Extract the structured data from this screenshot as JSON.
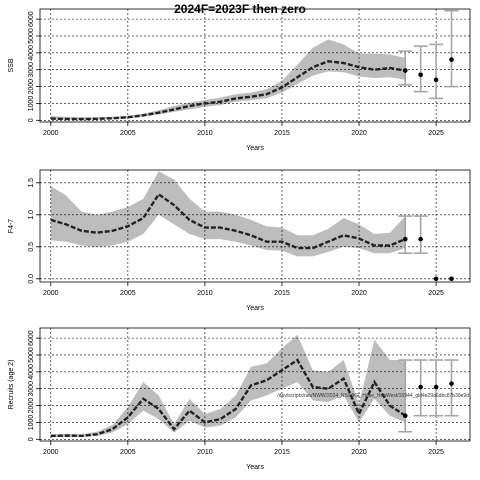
{
  "title": "2024F=2023F then zero",
  "chart_data": [
    {
      "type": "line",
      "xlabel": "Years",
      "ylabel": "SSB",
      "xlim": [
        1999.3,
        2027.2
      ],
      "ylim": [
        -100,
        6600
      ],
      "xticks": [
        2000,
        2005,
        2010,
        2015,
        2020,
        2025
      ],
      "yticks": [
        0,
        1000,
        2000,
        3000,
        4000,
        5000,
        6000
      ],
      "grid": true,
      "band_color": "#bdbdbd",
      "line_color": "#222222",
      "proj_color": "#a6a6a6",
      "series": [
        {
          "x": [
            2000,
            2001,
            2002,
            2003,
            2004,
            2005,
            2006,
            2007,
            2008,
            2009,
            2010,
            2011,
            2012,
            2013,
            2014,
            2015,
            2016,
            2017,
            2018,
            2019,
            2020,
            2021,
            2022,
            2023
          ],
          "values": [
            100,
            80,
            70,
            90,
            120,
            180,
            300,
            450,
            650,
            850,
            1000,
            1100,
            1300,
            1400,
            1550,
            1950,
            2550,
            3150,
            3500,
            3400,
            3150,
            3000,
            3100,
            2950
          ],
          "lower": [
            50,
            40,
            35,
            45,
            70,
            120,
            220,
            350,
            500,
            650,
            800,
            900,
            1100,
            1200,
            1300,
            1650,
            2150,
            2650,
            2900,
            2850,
            2600,
            2500,
            2550,
            2400
          ],
          "upper": [
            250,
            200,
            180,
            180,
            210,
            270,
            400,
            600,
            850,
            1050,
            1200,
            1350,
            1550,
            1650,
            1850,
            2350,
            3300,
            4300,
            4800,
            4500,
            3950,
            3950,
            3900,
            3700
          ]
        }
      ],
      "projection": [
        {
          "x": 2023,
          "value": 2950,
          "lower": 2100,
          "upper": 4100
        },
        {
          "x": 2024,
          "value": 2700,
          "lower": 1700,
          "upper": 4400
        },
        {
          "x": 2025,
          "value": 2400,
          "lower": 1300,
          "upper": 4500
        },
        {
          "x": 2026,
          "value": 3600,
          "lower": 2000,
          "upper": 6500
        }
      ]
    },
    {
      "type": "line",
      "xlabel": "Years",
      "ylabel": "F4-7",
      "xlim": [
        1999.3,
        2027.2
      ],
      "ylim": [
        -0.05,
        1.7
      ],
      "xticks": [
        2000,
        2005,
        2010,
        2015,
        2020,
        2025
      ],
      "yticks": [
        0.0,
        0.5,
        1.0,
        1.5
      ],
      "grid": true,
      "series": [
        {
          "x": [
            2000,
            2001,
            2002,
            2003,
            2004,
            2005,
            2006,
            2007,
            2008,
            2009,
            2010,
            2011,
            2012,
            2013,
            2014,
            2015,
            2016,
            2017,
            2018,
            2019,
            2020,
            2021,
            2022,
            2023
          ],
          "values": [
            0.92,
            0.85,
            0.75,
            0.72,
            0.75,
            0.82,
            0.95,
            1.32,
            1.15,
            0.92,
            0.8,
            0.8,
            0.75,
            0.68,
            0.58,
            0.58,
            0.48,
            0.48,
            0.58,
            0.68,
            0.63,
            0.52,
            0.52,
            0.62
          ],
          "lower": [
            0.6,
            0.58,
            0.52,
            0.5,
            0.52,
            0.58,
            0.7,
            1.0,
            0.85,
            0.7,
            0.62,
            0.62,
            0.58,
            0.52,
            0.45,
            0.44,
            0.35,
            0.35,
            0.42,
            0.5,
            0.48,
            0.4,
            0.4,
            0.48
          ],
          "upper": [
            1.45,
            1.3,
            1.05,
            1.0,
            1.05,
            1.12,
            1.25,
            1.68,
            1.55,
            1.25,
            1.05,
            1.05,
            1.0,
            0.92,
            0.82,
            0.8,
            0.68,
            0.68,
            0.78,
            0.95,
            0.85,
            0.7,
            0.72,
            0.98
          ]
        }
      ],
      "projection": [
        {
          "x": 2023,
          "value": 0.62,
          "lower": 0.4,
          "upper": 0.98
        },
        {
          "x": 2024,
          "value": 0.62,
          "lower": 0.4,
          "upper": 0.98
        },
        {
          "x": 2025,
          "value": 0.0,
          "lower": 0.0,
          "upper": 0.0
        },
        {
          "x": 2026,
          "value": 0.0,
          "lower": 0.0,
          "upper": 0.0
        }
      ]
    },
    {
      "type": "line",
      "xlabel": "Years",
      "ylabel": "Recruits (age 2)",
      "xlim": [
        1999.3,
        2027.2
      ],
      "ylim": [
        -100,
        6600
      ],
      "xticks": [
        2000,
        2005,
        2010,
        2015,
        2020,
        2025
      ],
      "yticks": [
        0,
        1000,
        2000,
        3000,
        4000,
        5000,
        6000
      ],
      "grid": true,
      "annotation": "/dev/scripts/run/NWW/2024_NS/HKE_Hake_HegWest/16944_gid4e29a6dbc87b30e9d",
      "series": [
        {
          "x": [
            2000,
            2001,
            2002,
            2003,
            2004,
            2005,
            2006,
            2007,
            2008,
            2009,
            2010,
            2011,
            2012,
            2013,
            2014,
            2015,
            2016,
            2017,
            2018,
            2019,
            2020,
            2021,
            2022,
            2023
          ],
          "values": [
            200,
            220,
            200,
            300,
            600,
            1300,
            2400,
            1800,
            600,
            1700,
            1000,
            1200,
            1800,
            3200,
            3500,
            4100,
            4700,
            3100,
            3000,
            3600,
            1500,
            3400,
            2000,
            1400
          ],
          "lower": [
            120,
            140,
            130,
            200,
            400,
            900,
            1700,
            1200,
            400,
            1100,
            700,
            800,
            1300,
            2300,
            2600,
            3000,
            3400,
            2300,
            2200,
            2600,
            1000,
            2400,
            1400,
            1000
          ],
          "upper": [
            300,
            320,
            300,
            450,
            850,
            1900,
            3400,
            2600,
            900,
            2400,
            1500,
            1800,
            2600,
            4300,
            4500,
            5400,
            6200,
            4100,
            4000,
            4700,
            2100,
            5900,
            4700,
            4700
          ]
        }
      ],
      "projection": [
        {
          "x": 2023,
          "value": 1400,
          "lower": 450,
          "upper": 4700
        },
        {
          "x": 2024,
          "value": 3100,
          "lower": 1400,
          "upper": 4700
        },
        {
          "x": 2025,
          "value": 3100,
          "lower": 1400,
          "upper": 4700
        },
        {
          "x": 2026,
          "value": 3300,
          "lower": 1400,
          "upper": 4700
        }
      ]
    }
  ]
}
